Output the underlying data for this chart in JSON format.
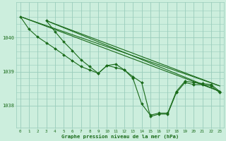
{
  "title": "Graphe pression niveau de la mer (hPa)",
  "bg_color": "#cceedd",
  "grid_color": "#99ccbb",
  "line_color": "#1a6b1a",
  "marker_color": "#1a6b1a",
  "xlim": [
    -0.5,
    23.5
  ],
  "ylim": [
    1037.35,
    1041.05
  ],
  "yticks": [
    1038,
    1039,
    1040
  ],
  "xticks": [
    0,
    1,
    2,
    3,
    4,
    5,
    6,
    7,
    8,
    9,
    10,
    11,
    12,
    13,
    14,
    15,
    16,
    17,
    18,
    19,
    20,
    21,
    22,
    23
  ],
  "straight_lines": [
    {
      "x": [
        0,
        23
      ],
      "y": [
        1040.62,
        1038.42
      ]
    },
    {
      "x": [
        0,
        23
      ],
      "y": [
        1040.62,
        1038.58
      ]
    },
    {
      "x": [
        3,
        23
      ],
      "y": [
        1040.5,
        1038.42
      ]
    },
    {
      "x": [
        3,
        23
      ],
      "y": [
        1040.5,
        1038.58
      ]
    }
  ],
  "curved_lines": [
    {
      "x": [
        0,
        1,
        2,
        3,
        4,
        5,
        6,
        7,
        8,
        9,
        10,
        11,
        12,
        13,
        14,
        15,
        16,
        17,
        18,
        19,
        20,
        21,
        22,
        23
      ],
      "y": [
        1040.62,
        1040.25,
        1040.02,
        1039.85,
        1039.68,
        1039.5,
        1039.32,
        1039.15,
        1039.05,
        1038.95,
        1039.18,
        1039.12,
        1039.05,
        1038.8,
        1038.05,
        1037.72,
        1037.78,
        1037.78,
        1038.42,
        1038.72,
        1038.68,
        1038.65,
        1038.62,
        1038.42
      ]
    },
    {
      "x": [
        3,
        4,
        5,
        6,
        7,
        8,
        9,
        10,
        11,
        12,
        13,
        14,
        15,
        16,
        17,
        18,
        19,
        20,
        21,
        22,
        23
      ],
      "y": [
        1040.5,
        1040.18,
        1039.88,
        1039.62,
        1039.35,
        1039.15,
        1038.95,
        1039.18,
        1039.22,
        1039.05,
        1038.85,
        1038.68,
        1037.68,
        1037.75,
        1037.75,
        1038.38,
        1038.68,
        1038.62,
        1038.62,
        1038.58,
        1038.38
      ]
    }
  ]
}
